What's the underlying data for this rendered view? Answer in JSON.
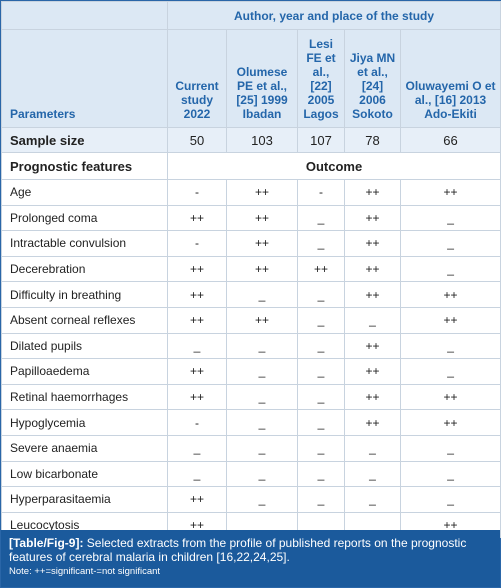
{
  "table": {
    "group_header": "Author, year and place of the study",
    "columns": [
      "Parameters",
      "Current study 2022",
      "Olumese PE et al., [25] 1999 Ibadan",
      "Lesi FE et al., [22] 2005 Lagos",
      "Jiya MN et al., [24] 2006 Sokoto",
      "Oluwayemi O et al., [16] 2013 Ado-Ekiti"
    ],
    "sample_row": [
      "Sample size",
      "50",
      "103",
      "107",
      "78",
      "66"
    ],
    "section_row": [
      "Prognostic features",
      "Outcome"
    ],
    "rows": [
      [
        "Age",
        "-",
        "++",
        "-",
        "++",
        "++"
      ],
      [
        "Prolonged coma",
        "++",
        "++",
        "_",
        "++",
        "_"
      ],
      [
        "Intractable convulsion",
        "-",
        "++",
        "_",
        "++",
        "_"
      ],
      [
        "Decerebration",
        "++",
        "++",
        "++",
        "++",
        "_"
      ],
      [
        "Difficulty in breathing",
        "++",
        "_",
        "_",
        "++",
        "++"
      ],
      [
        "Absent corneal reflexes",
        "++",
        "++",
        "_",
        "_",
        "++"
      ],
      [
        "Dilated pupils",
        "_",
        "_",
        "_",
        "++",
        "_"
      ],
      [
        "Papilloaedema",
        "++",
        "_",
        "_",
        "++",
        "_"
      ],
      [
        "Retinal haemorrhages",
        "++",
        "_",
        "_",
        "++",
        "++"
      ],
      [
        "Hypoglycemia",
        "-",
        "_",
        "_",
        "++",
        "++"
      ],
      [
        "Severe anaemia",
        "_",
        "_",
        "_",
        "_",
        "_"
      ],
      [
        "Low bicarbonate",
        "_",
        "_",
        "_",
        "_",
        "_"
      ],
      [
        "Hyperparasitaemia",
        "++",
        "_",
        "_",
        "_",
        "_"
      ],
      [
        "Leucocytosis",
        "++",
        "_",
        "_",
        "_",
        "++"
      ]
    ]
  },
  "caption": {
    "label": "[Table/Fig-9]:",
    "text": "Selected extracts from the profile of published reports on the prognostic features of cerebral malaria in children [16,22,24,25].",
    "note": "Note: ++=significant-=not significant"
  }
}
